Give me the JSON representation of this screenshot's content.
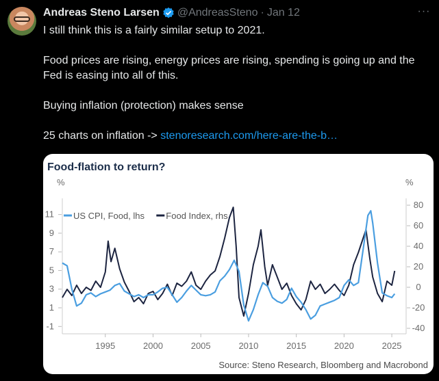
{
  "tweet": {
    "name": "Andreas Steno Larsen",
    "handle": "@AndreasSteno",
    "separator": "·",
    "date": "Jan 12",
    "more": "···",
    "paragraphs": [
      "I still think this is a fairly similar setup to 2021.",
      "Food prices are rising, energy prices are rising, spending is going up and the Fed is easing into all of this.",
      "Buying inflation (protection) makes sense"
    ],
    "link_prefix": "25 charts on inflation -> ",
    "link_text": "stenoresearch.com/here-are-the-b…"
  },
  "colors": {
    "accent": "#1d9bf0",
    "series_cpi": "#4a9ee0",
    "series_index": "#1c2440"
  },
  "chart_data": {
    "type": "line",
    "title": "Food-flation to return?",
    "left_unit": "%",
    "right_unit": "%",
    "left_ticks": [
      11,
      9,
      7,
      5,
      3,
      1,
      -1
    ],
    "right_ticks": [
      80,
      60,
      40,
      20,
      0,
      -20,
      -40
    ],
    "x_ticks": [
      1995,
      2000,
      2005,
      2010,
      2015,
      2020,
      2025
    ],
    "xlim": [
      1990.5,
      2026.5
    ],
    "ylim_left": [
      -1.2,
      12
    ],
    "ylim_right": [
      -40,
      80
    ],
    "legend": [
      {
        "name": "US CPI, Food, lhs",
        "axis": "left"
      },
      {
        "name": "Food Index, rhs",
        "axis": "right"
      }
    ],
    "series": [
      {
        "name": "US CPI, Food, lhs",
        "axis": "left",
        "points": [
          [
            1990.5,
            5.8
          ],
          [
            1991,
            5.5
          ],
          [
            1991.5,
            3
          ],
          [
            1992,
            1.2
          ],
          [
            1992.5,
            1.5
          ],
          [
            1993,
            2.4
          ],
          [
            1993.5,
            2.6
          ],
          [
            1994,
            2.2
          ],
          [
            1994.5,
            2.5
          ],
          [
            1995,
            2.7
          ],
          [
            1995.5,
            2.9
          ],
          [
            1996,
            3.4
          ],
          [
            1996.5,
            3.6
          ],
          [
            1997,
            2.8
          ],
          [
            1997.5,
            2.5
          ],
          [
            1998,
            2.2
          ],
          [
            1998.5,
            2.4
          ],
          [
            1999,
            2.1
          ],
          [
            1999.5,
            2.4
          ],
          [
            2000,
            2.4
          ],
          [
            2000.5,
            2.7
          ],
          [
            2001,
            3.1
          ],
          [
            2001.5,
            3.2
          ],
          [
            2002,
            2.4
          ],
          [
            2002.5,
            1.6
          ],
          [
            2003,
            2.1
          ],
          [
            2003.5,
            2.8
          ],
          [
            2004,
            3.4
          ],
          [
            2004.5,
            2.9
          ],
          [
            2005,
            2.4
          ],
          [
            2005.5,
            2.3
          ],
          [
            2006,
            2.4
          ],
          [
            2006.5,
            2.7
          ],
          [
            2007,
            3.9
          ],
          [
            2007.5,
            4.4
          ],
          [
            2008,
            5.1
          ],
          [
            2008.5,
            6.1
          ],
          [
            2009,
            4.9
          ],
          [
            2009.5,
            1.3
          ],
          [
            2010,
            -0.4
          ],
          [
            2010.5,
            0.8
          ],
          [
            2011,
            2.4
          ],
          [
            2011.5,
            3.7
          ],
          [
            2012,
            3.3
          ],
          [
            2012.5,
            2.1
          ],
          [
            2013,
            1.7
          ],
          [
            2013.5,
            1.5
          ],
          [
            2014,
            1.9
          ],
          [
            2014.5,
            3.1
          ],
          [
            2015,
            2.2
          ],
          [
            2015.5,
            1.6
          ],
          [
            2016,
            0.8
          ],
          [
            2016.5,
            -0.2
          ],
          [
            2017,
            0.2
          ],
          [
            2017.5,
            1.2
          ],
          [
            2018,
            1.4
          ],
          [
            2018.5,
            1.6
          ],
          [
            2019,
            1.8
          ],
          [
            2019.5,
            2.1
          ],
          [
            2020,
            3.4
          ],
          [
            2020.5,
            4.0
          ],
          [
            2021,
            3.4
          ],
          [
            2021.5,
            3.7
          ],
          [
            2022,
            7.3
          ],
          [
            2022.5,
            10.9
          ],
          [
            2022.8,
            11.4
          ],
          [
            2023,
            10.1
          ],
          [
            2023.5,
            5.8
          ],
          [
            2024,
            2.6
          ],
          [
            2024.5,
            2.3
          ],
          [
            2025,
            2.1
          ],
          [
            2025.3,
            2.5
          ]
        ]
      },
      {
        "name": "Food Index, rhs",
        "axis": "right",
        "points": [
          [
            1990.5,
            -10
          ],
          [
            1991,
            -2
          ],
          [
            1991.5,
            -8
          ],
          [
            1992,
            2
          ],
          [
            1992.5,
            -6
          ],
          [
            1993,
            0
          ],
          [
            1993.5,
            -3
          ],
          [
            1994,
            6
          ],
          [
            1994.5,
            0
          ],
          [
            1995,
            15
          ],
          [
            1995.3,
            45
          ],
          [
            1995.6,
            25
          ],
          [
            1996,
            38
          ],
          [
            1996.5,
            18
          ],
          [
            1997,
            5
          ],
          [
            1997.5,
            -4
          ],
          [
            1998,
            -14
          ],
          [
            1998.5,
            -10
          ],
          [
            1999,
            -16
          ],
          [
            1999.5,
            -6
          ],
          [
            2000,
            -4
          ],
          [
            2000.5,
            -12
          ],
          [
            2001,
            -6
          ],
          [
            2001.5,
            3
          ],
          [
            2002,
            -8
          ],
          [
            2002.5,
            4
          ],
          [
            2003,
            1
          ],
          [
            2003.5,
            6
          ],
          [
            2004,
            15
          ],
          [
            2004.5,
            2
          ],
          [
            2005,
            -2
          ],
          [
            2005.5,
            6
          ],
          [
            2006,
            12
          ],
          [
            2006.5,
            16
          ],
          [
            2007,
            30
          ],
          [
            2007.5,
            48
          ],
          [
            2008,
            68
          ],
          [
            2008.4,
            78
          ],
          [
            2008.7,
            40
          ],
          [
            2009,
            -10
          ],
          [
            2009.5,
            -28
          ],
          [
            2010,
            -6
          ],
          [
            2010.5,
            22
          ],
          [
            2011,
            40
          ],
          [
            2011.3,
            56
          ],
          [
            2011.7,
            20
          ],
          [
            2012,
            2
          ],
          [
            2012.5,
            22
          ],
          [
            2013,
            10
          ],
          [
            2013.5,
            -2
          ],
          [
            2014,
            4
          ],
          [
            2014.5,
            -8
          ],
          [
            2015,
            -16
          ],
          [
            2015.5,
            -22
          ],
          [
            2016,
            -12
          ],
          [
            2016.5,
            6
          ],
          [
            2017,
            -2
          ],
          [
            2017.5,
            3
          ],
          [
            2018,
            -6
          ],
          [
            2018.5,
            -2
          ],
          [
            2019,
            3
          ],
          [
            2019.5,
            -3
          ],
          [
            2020,
            -8
          ],
          [
            2020.5,
            2
          ],
          [
            2021,
            22
          ],
          [
            2021.5,
            34
          ],
          [
            2022,
            48
          ],
          [
            2022.3,
            56
          ],
          [
            2022.7,
            28
          ],
          [
            2023,
            10
          ],
          [
            2023.5,
            -6
          ],
          [
            2024,
            -14
          ],
          [
            2024.5,
            6
          ],
          [
            2025,
            2
          ],
          [
            2025.3,
            16
          ]
        ]
      }
    ],
    "source": "Source: Steno Research, Bloomberg and Macrobond"
  }
}
